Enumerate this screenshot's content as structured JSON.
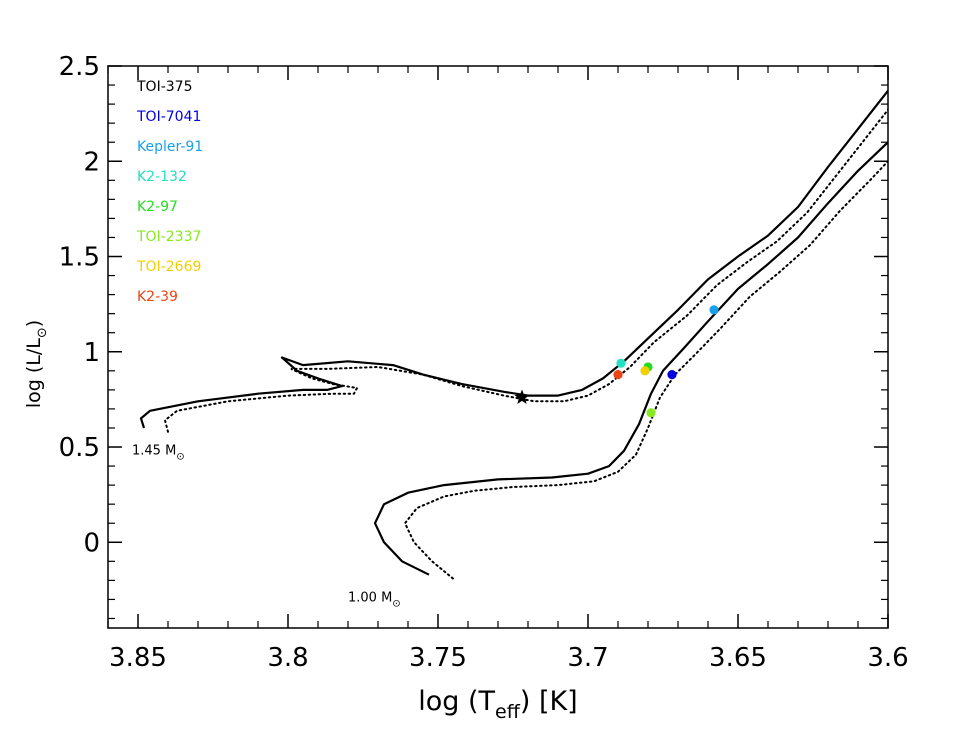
{
  "chart_data": {
    "type": "scatter",
    "xlabel": "log (T",
    "xlabel_sub": "eff",
    "xlabel_suffix": ") [K]",
    "ylabel": "log (L/L",
    "ylabel_sun": "⊙",
    "ylabel_suffix": ")",
    "xlim": [
      3.86,
      3.6
    ],
    "ylim": [
      -0.45,
      2.5
    ],
    "xticks": [
      3.85,
      3.8,
      3.75,
      3.7,
      3.65,
      3.6
    ],
    "xtick_labels": [
      "3.85",
      "3.8",
      "3.75",
      "3.7",
      "3.65",
      "3.6"
    ],
    "yticks": [
      0,
      0.5,
      1,
      1.5,
      2,
      2.5
    ],
    "ytick_labels": [
      "0",
      "0.5",
      "1",
      "1.5",
      "2",
      "2.5"
    ],
    "legend_position": "top-left",
    "series": [
      {
        "name": "TOI-375",
        "color": "#000000",
        "marker": "star",
        "x": 3.722,
        "y": 0.76
      },
      {
        "name": "TOI-7041",
        "color": "#0000e0",
        "marker": "circle",
        "x": 3.672,
        "y": 0.88
      },
      {
        "name": "Kepler-91",
        "color": "#1a9fea",
        "marker": "circle",
        "x": 3.658,
        "y": 1.22
      },
      {
        "name": "K2-132",
        "color": "#22e0c0",
        "marker": "circle",
        "x": 3.689,
        "y": 0.94
      },
      {
        "name": "K2-97",
        "color": "#22dd22",
        "marker": "circle",
        "x": 3.68,
        "y": 0.92
      },
      {
        "name": "TOI-2337",
        "color": "#88e822",
        "marker": "circle",
        "x": 3.679,
        "y": 0.68
      },
      {
        "name": "TOI-2669",
        "color": "#f0d000",
        "marker": "circle",
        "x": 3.681,
        "y": 0.9
      },
      {
        "name": "K2-39",
        "color": "#ee4411",
        "marker": "circle",
        "x": 3.69,
        "y": 0.88
      }
    ],
    "tracks": [
      {
        "label": "1.45 M",
        "label_sun": "⊙",
        "label_at": [
          3.852,
          0.46
        ],
        "solid": [
          [
            3.848,
            0.6
          ],
          [
            3.849,
            0.65
          ],
          [
            3.846,
            0.69
          ],
          [
            3.83,
            0.74
          ],
          [
            3.81,
            0.78
          ],
          [
            3.795,
            0.8
          ],
          [
            3.787,
            0.8
          ],
          [
            3.782,
            0.82
          ],
          [
            3.79,
            0.86
          ],
          [
            3.797,
            0.9
          ],
          [
            3.802,
            0.97
          ],
          [
            3.795,
            0.93
          ],
          [
            3.78,
            0.95
          ],
          [
            3.765,
            0.93
          ],
          [
            3.755,
            0.88
          ],
          [
            3.742,
            0.83
          ],
          [
            3.728,
            0.79
          ],
          [
            3.72,
            0.77
          ],
          [
            3.71,
            0.77
          ],
          [
            3.702,
            0.8
          ],
          [
            3.695,
            0.86
          ],
          [
            3.688,
            0.95
          ],
          [
            3.68,
            1.07
          ],
          [
            3.67,
            1.22
          ],
          [
            3.66,
            1.38
          ],
          [
            3.65,
            1.5
          ],
          [
            3.64,
            1.61
          ],
          [
            3.63,
            1.76
          ],
          [
            3.62,
            1.97
          ],
          [
            3.61,
            2.17
          ],
          [
            3.603,
            2.31
          ],
          [
            3.597,
            2.43
          ]
        ],
        "dotted": [
          [
            3.84,
            0.58
          ],
          [
            3.841,
            0.64
          ],
          [
            3.837,
            0.69
          ],
          [
            3.82,
            0.74
          ],
          [
            3.8,
            0.77
          ],
          [
            3.785,
            0.78
          ],
          [
            3.778,
            0.78
          ],
          [
            3.777,
            0.81
          ],
          [
            3.785,
            0.83
          ],
          [
            3.792,
            0.86
          ],
          [
            3.799,
            0.91
          ],
          [
            3.787,
            0.91
          ],
          [
            3.77,
            0.92
          ],
          [
            3.755,
            0.88
          ],
          [
            3.742,
            0.82
          ],
          [
            3.728,
            0.77
          ],
          [
            3.718,
            0.74
          ],
          [
            3.708,
            0.74
          ],
          [
            3.7,
            0.77
          ],
          [
            3.693,
            0.83
          ],
          [
            3.686,
            0.92
          ],
          [
            3.678,
            1.05
          ],
          [
            3.667,
            1.19
          ],
          [
            3.657,
            1.35
          ],
          [
            3.647,
            1.47
          ],
          [
            3.637,
            1.58
          ],
          [
            3.627,
            1.73
          ],
          [
            3.617,
            1.93
          ],
          [
            3.607,
            2.13
          ],
          [
            3.6,
            2.27
          ],
          [
            3.594,
            2.4
          ]
        ]
      },
      {
        "label": "1.00 M",
        "label_sun": "⊙",
        "label_at": [
          3.78,
          -0.31
        ],
        "solid": [
          [
            3.753,
            -0.17
          ],
          [
            3.762,
            -0.1
          ],
          [
            3.768,
            0.0
          ],
          [
            3.771,
            0.1
          ],
          [
            3.768,
            0.2
          ],
          [
            3.76,
            0.26
          ],
          [
            3.748,
            0.3
          ],
          [
            3.73,
            0.33
          ],
          [
            3.712,
            0.34
          ],
          [
            3.7,
            0.36
          ],
          [
            3.693,
            0.4
          ],
          [
            3.688,
            0.48
          ],
          [
            3.683,
            0.62
          ],
          [
            3.679,
            0.78
          ],
          [
            3.675,
            0.9
          ],
          [
            3.668,
            1.02
          ],
          [
            3.66,
            1.16
          ],
          [
            3.65,
            1.33
          ],
          [
            3.64,
            1.46
          ],
          [
            3.63,
            1.6
          ],
          [
            3.62,
            1.78
          ],
          [
            3.61,
            1.95
          ],
          [
            3.6,
            2.1
          ],
          [
            3.592,
            2.22
          ]
        ],
        "dotted": [
          [
            3.745,
            -0.19
          ],
          [
            3.752,
            -0.1
          ],
          [
            3.758,
            0.0
          ],
          [
            3.761,
            0.1
          ],
          [
            3.757,
            0.18
          ],
          [
            3.748,
            0.24
          ],
          [
            3.738,
            0.27
          ],
          [
            3.725,
            0.29
          ],
          [
            3.71,
            0.3
          ],
          [
            3.698,
            0.32
          ],
          [
            3.69,
            0.37
          ],
          [
            3.684,
            0.46
          ],
          [
            3.68,
            0.6
          ],
          [
            3.676,
            0.76
          ],
          [
            3.671,
            0.88
          ],
          [
            3.664,
            0.99
          ],
          [
            3.656,
            1.12
          ],
          [
            3.646,
            1.29
          ],
          [
            3.636,
            1.42
          ],
          [
            3.626,
            1.56
          ],
          [
            3.616,
            1.74
          ],
          [
            3.606,
            1.9
          ],
          [
            3.597,
            2.05
          ],
          [
            3.59,
            2.17
          ]
        ]
      }
    ]
  }
}
